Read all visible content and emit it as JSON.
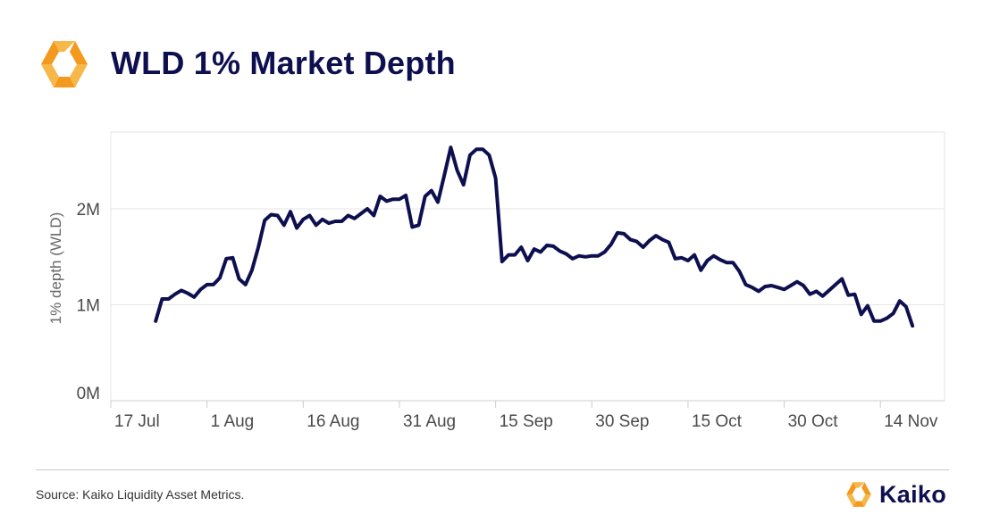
{
  "header": {
    "title": "WLD 1% Market Depth",
    "logo_icon": "kaiko-hexagon-logo-icon"
  },
  "footer": {
    "source": "Source: Kaiko Liquidity Asset Metrics.",
    "brand": "Kaiko",
    "brand_icon": "kaiko-hexagon-logo-icon"
  },
  "colors": {
    "title": "#0e0f4f",
    "line": "#0e0f4f",
    "logo_orange": "#f39a1e",
    "logo_orange_light": "#f7b84a",
    "grid": "#e6e6e6"
  },
  "chart_data": {
    "type": "line",
    "title": "WLD 1% Market Depth",
    "xlabel": "",
    "ylabel": "1% depth (WLD)",
    "x_ticks": [
      "17 Jul",
      "1 Aug",
      "16 Aug",
      "31 Aug",
      "15 Sep",
      "30 Sep",
      "15 Oct",
      "30 Oct",
      "14 Nov"
    ],
    "y_ticks": [
      "0M",
      "1M",
      "2M"
    ],
    "x_range": [
      "2023-07-17",
      "2023-11-24"
    ],
    "ylim": [
      0,
      2.8
    ],
    "y_unit": "M",
    "grid": "horizontal",
    "series": [
      {
        "name": "",
        "color": "#0e0f4f",
        "points": [
          [
            "2023-07-24",
            0.83
          ],
          [
            "2023-07-25",
            1.06
          ],
          [
            "2023-07-26",
            1.06
          ],
          [
            "2023-07-27",
            1.11
          ],
          [
            "2023-07-28",
            1.15
          ],
          [
            "2023-07-29",
            1.12
          ],
          [
            "2023-07-30",
            1.08
          ],
          [
            "2023-07-31",
            1.16
          ],
          [
            "2023-08-01",
            1.21
          ],
          [
            "2023-08-02",
            1.21
          ],
          [
            "2023-08-03",
            1.28
          ],
          [
            "2023-08-04",
            1.48
          ],
          [
            "2023-08-05",
            1.49
          ],
          [
            "2023-08-06",
            1.27
          ],
          [
            "2023-08-07",
            1.21
          ],
          [
            "2023-08-08",
            1.36
          ],
          [
            "2023-08-09",
            1.6
          ],
          [
            "2023-08-10",
            1.88
          ],
          [
            "2023-08-11",
            1.94
          ],
          [
            "2023-08-12",
            1.93
          ],
          [
            "2023-08-13",
            1.83
          ],
          [
            "2023-08-14",
            1.97
          ],
          [
            "2023-08-15",
            1.8
          ],
          [
            "2023-08-16",
            1.89
          ],
          [
            "2023-08-17",
            1.93
          ],
          [
            "2023-08-18",
            1.83
          ],
          [
            "2023-08-19",
            1.89
          ],
          [
            "2023-08-20",
            1.85
          ],
          [
            "2023-08-21",
            1.87
          ],
          [
            "2023-08-22",
            1.87
          ],
          [
            "2023-08-23",
            1.93
          ],
          [
            "2023-08-24",
            1.9
          ],
          [
            "2023-08-25",
            1.95
          ],
          [
            "2023-08-26",
            2.0
          ],
          [
            "2023-08-27",
            1.93
          ],
          [
            "2023-08-28",
            2.13
          ],
          [
            "2023-08-29",
            2.08
          ],
          [
            "2023-08-30",
            2.1
          ],
          [
            "2023-08-31",
            2.1
          ],
          [
            "2023-09-01",
            2.14
          ],
          [
            "2023-09-02",
            1.81
          ],
          [
            "2023-09-03",
            1.83
          ],
          [
            "2023-09-04",
            2.13
          ],
          [
            "2023-09-05",
            2.19
          ],
          [
            "2023-09-06",
            2.07
          ],
          [
            "2023-09-07",
            2.35
          ],
          [
            "2023-09-08",
            2.64
          ],
          [
            "2023-09-09",
            2.4
          ],
          [
            "2023-09-10",
            2.25
          ],
          [
            "2023-09-11",
            2.56
          ],
          [
            "2023-09-12",
            2.62
          ],
          [
            "2023-09-13",
            2.62
          ],
          [
            "2023-09-14",
            2.56
          ],
          [
            "2023-09-15",
            2.32
          ],
          [
            "2023-09-16",
            1.45
          ],
          [
            "2023-09-17",
            1.52
          ],
          [
            "2023-09-18",
            1.52
          ],
          [
            "2023-09-19",
            1.6
          ],
          [
            "2023-09-20",
            1.46
          ],
          [
            "2023-09-21",
            1.58
          ],
          [
            "2023-09-22",
            1.55
          ],
          [
            "2023-09-23",
            1.62
          ],
          [
            "2023-09-24",
            1.61
          ],
          [
            "2023-09-25",
            1.56
          ],
          [
            "2023-09-26",
            1.53
          ],
          [
            "2023-09-27",
            1.48
          ],
          [
            "2023-09-28",
            1.51
          ],
          [
            "2023-09-29",
            1.5
          ],
          [
            "2023-09-30",
            1.51
          ],
          [
            "2023-10-01",
            1.51
          ],
          [
            "2023-10-02",
            1.55
          ],
          [
            "2023-10-03",
            1.63
          ],
          [
            "2023-10-04",
            1.75
          ],
          [
            "2023-10-05",
            1.74
          ],
          [
            "2023-10-06",
            1.68
          ],
          [
            "2023-10-07",
            1.66
          ],
          [
            "2023-10-08",
            1.6
          ],
          [
            "2023-10-09",
            1.67
          ],
          [
            "2023-10-10",
            1.72
          ],
          [
            "2023-10-11",
            1.68
          ],
          [
            "2023-10-12",
            1.65
          ],
          [
            "2023-10-13",
            1.48
          ],
          [
            "2023-10-14",
            1.49
          ],
          [
            "2023-10-15",
            1.46
          ],
          [
            "2023-10-16",
            1.52
          ],
          [
            "2023-10-17",
            1.36
          ],
          [
            "2023-10-18",
            1.46
          ],
          [
            "2023-10-19",
            1.51
          ],
          [
            "2023-10-20",
            1.47
          ],
          [
            "2023-10-21",
            1.44
          ],
          [
            "2023-10-22",
            1.44
          ],
          [
            "2023-10-23",
            1.35
          ],
          [
            "2023-10-24",
            1.21
          ],
          [
            "2023-10-25",
            1.18
          ],
          [
            "2023-10-26",
            1.14
          ],
          [
            "2023-10-27",
            1.19
          ],
          [
            "2023-10-28",
            1.2
          ],
          [
            "2023-10-29",
            1.18
          ],
          [
            "2023-10-30",
            1.16
          ],
          [
            "2023-10-31",
            1.2
          ],
          [
            "2023-11-01",
            1.24
          ],
          [
            "2023-11-02",
            1.2
          ],
          [
            "2023-11-03",
            1.11
          ],
          [
            "2023-11-04",
            1.14
          ],
          [
            "2023-11-05",
            1.09
          ],
          [
            "2023-11-06",
            1.15
          ],
          [
            "2023-11-07",
            1.21
          ],
          [
            "2023-11-08",
            1.27
          ],
          [
            "2023-11-09",
            1.1
          ],
          [
            "2023-11-10",
            1.11
          ],
          [
            "2023-11-11",
            0.9
          ],
          [
            "2023-11-12",
            0.99
          ],
          [
            "2023-11-13",
            0.83
          ],
          [
            "2023-11-14",
            0.83
          ],
          [
            "2023-11-15",
            0.86
          ],
          [
            "2023-11-16",
            0.91
          ],
          [
            "2023-11-17",
            1.04
          ],
          [
            "2023-11-18",
            0.98
          ],
          [
            "2023-11-19",
            0.78
          ]
        ]
      }
    ]
  }
}
